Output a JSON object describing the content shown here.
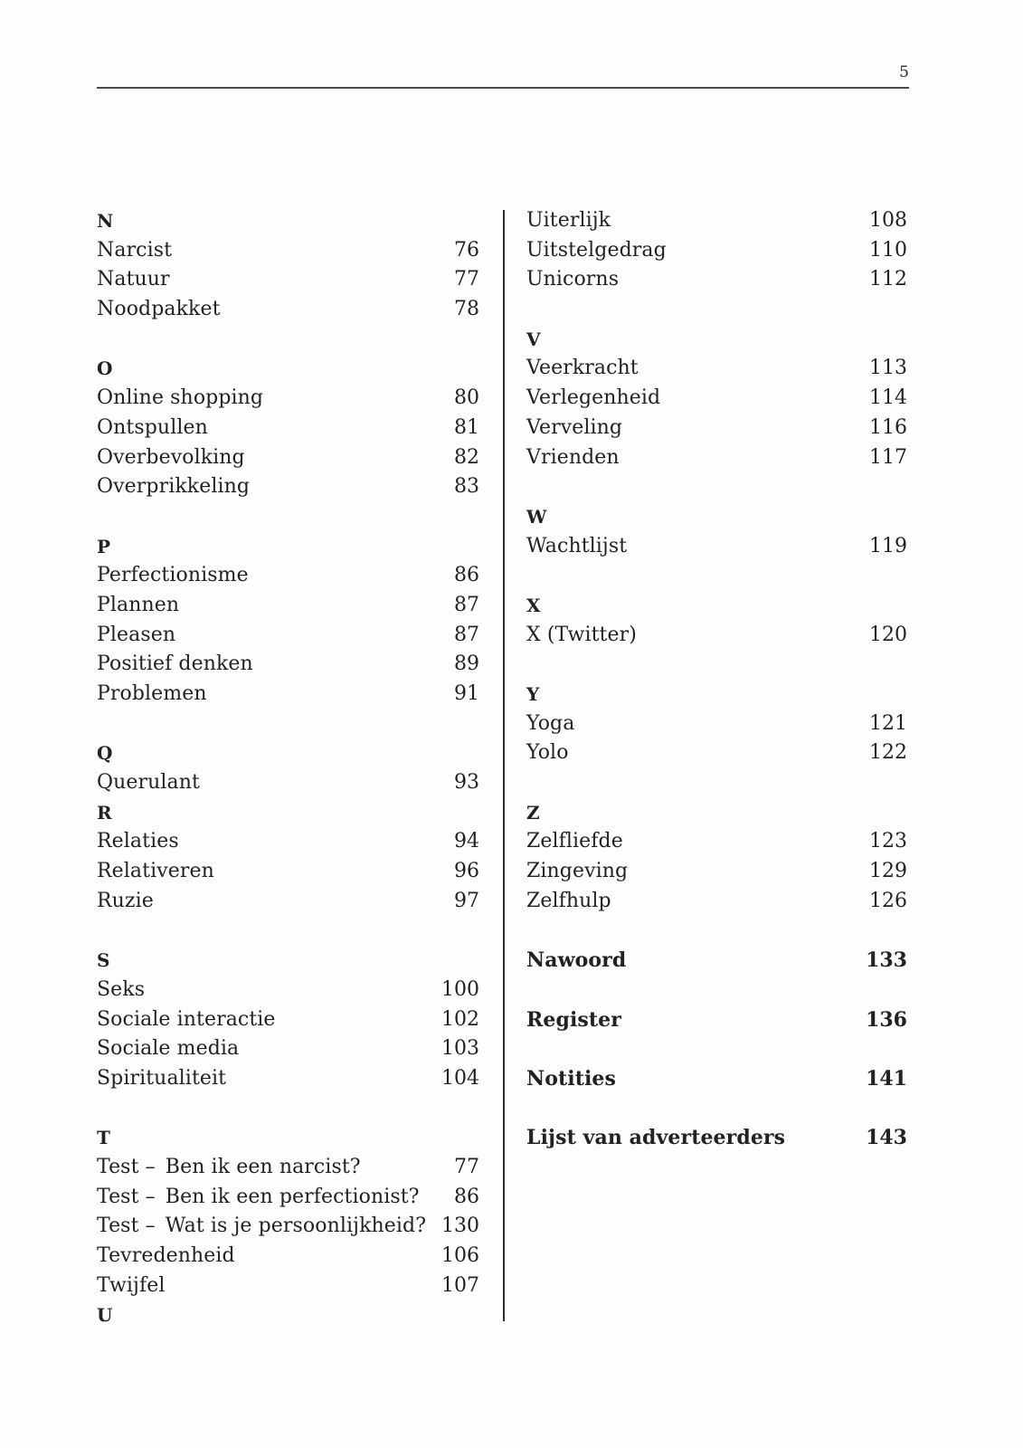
{
  "page": {
    "number": "5"
  },
  "columns": {
    "left": [
      {
        "type": "heading",
        "text": "N"
      },
      {
        "type": "entry",
        "label": "Narcist",
        "page": "76"
      },
      {
        "type": "entry",
        "label": "Natuur",
        "page": "77"
      },
      {
        "type": "entry",
        "label": "Noodpakket",
        "page": "78"
      },
      {
        "type": "spacer"
      },
      {
        "type": "heading",
        "text": "O"
      },
      {
        "type": "entry",
        "label": "Online shopping",
        "page": "80"
      },
      {
        "type": "entry",
        "label": "Ontspullen",
        "page": "81"
      },
      {
        "type": "entry",
        "label": "Overbevolking",
        "page": "82"
      },
      {
        "type": "entry",
        "label": "Overprikkeling",
        "page": "83"
      },
      {
        "type": "spacer"
      },
      {
        "type": "heading",
        "text": "P"
      },
      {
        "type": "entry",
        "label": "Perfectionisme",
        "page": "86"
      },
      {
        "type": "entry",
        "label": "Plannen",
        "page": "87"
      },
      {
        "type": "entry",
        "label": "Pleasen",
        "page": "87"
      },
      {
        "type": "entry",
        "label": "Positief denken",
        "page": "89"
      },
      {
        "type": "entry",
        "label": "Problemen",
        "page": "91"
      },
      {
        "type": "spacer"
      },
      {
        "type": "heading",
        "text": "Q"
      },
      {
        "type": "entry",
        "label": "Querulant",
        "page": "93"
      },
      {
        "type": "heading",
        "text": "R"
      },
      {
        "type": "entry",
        "label": "Relaties",
        "page": "94"
      },
      {
        "type": "entry",
        "label": "Relativeren",
        "page": "96"
      },
      {
        "type": "entry",
        "label": "Ruzie",
        "page": "97"
      },
      {
        "type": "spacer"
      },
      {
        "type": "heading",
        "text": "S"
      },
      {
        "type": "entry",
        "label": "Seks",
        "page": "100"
      },
      {
        "type": "entry",
        "label": "Sociale interactie",
        "page": "102"
      },
      {
        "type": "entry",
        "label": "Sociale media",
        "page": "103"
      },
      {
        "type": "entry",
        "label": "Spiritualiteit",
        "page": "104"
      },
      {
        "type": "spacer"
      },
      {
        "type": "heading",
        "text": "T"
      },
      {
        "type": "entry",
        "label": "Test – Ben ik een narcist?",
        "page": "77"
      },
      {
        "type": "entry",
        "label": "Test – Ben ik een perfectionist?",
        "page": "86"
      },
      {
        "type": "entry",
        "label": "Test – Wat is je persoonlijkheid?",
        "page": "130"
      },
      {
        "type": "entry",
        "label": "Tevredenheid",
        "page": "106"
      },
      {
        "type": "entry",
        "label": "Twijfel",
        "page": "107"
      },
      {
        "type": "heading",
        "text": "U"
      }
    ],
    "right": [
      {
        "type": "entry",
        "label": "Uiterlijk",
        "page": "108"
      },
      {
        "type": "entry",
        "label": "Uitstelgedrag",
        "page": "110"
      },
      {
        "type": "entry",
        "label": "Unicorns",
        "page": "112"
      },
      {
        "type": "spacer"
      },
      {
        "type": "heading",
        "text": "V"
      },
      {
        "type": "entry",
        "label": "Veerkracht",
        "page": "113"
      },
      {
        "type": "entry",
        "label": "Verlegenheid",
        "page": "114"
      },
      {
        "type": "entry",
        "label": "Verveling",
        "page": "116"
      },
      {
        "type": "entry",
        "label": "Vrienden",
        "page": "117"
      },
      {
        "type": "spacer"
      },
      {
        "type": "heading",
        "text": "W"
      },
      {
        "type": "entry",
        "label": "Wachtlijst",
        "page": "119"
      },
      {
        "type": "spacer"
      },
      {
        "type": "heading",
        "text": "X"
      },
      {
        "type": "entry",
        "label": "X (Twitter)",
        "page": "120"
      },
      {
        "type": "spacer"
      },
      {
        "type": "heading",
        "text": "Y"
      },
      {
        "type": "entry",
        "label": "Yoga",
        "page": "121"
      },
      {
        "type": "entry",
        "label": "Yolo",
        "page": "122"
      },
      {
        "type": "spacer"
      },
      {
        "type": "heading",
        "text": "Z"
      },
      {
        "type": "entry",
        "label": "Zelfliefde",
        "page": "123"
      },
      {
        "type": "entry",
        "label": "Zingeving",
        "page": "129"
      },
      {
        "type": "entry",
        "label": "Zelfhulp",
        "page": "126"
      },
      {
        "type": "spacer"
      },
      {
        "type": "bold-entry",
        "label": "Nawoord",
        "page": "133"
      },
      {
        "type": "spacer"
      },
      {
        "type": "bold-entry",
        "label": "Register",
        "page": "136"
      },
      {
        "type": "spacer"
      },
      {
        "type": "bold-entry",
        "label": "Notities",
        "page": "141"
      },
      {
        "type": "spacer"
      },
      {
        "type": "bold-entry",
        "label": "Lijst van adverteerders",
        "page": "143"
      }
    ]
  }
}
